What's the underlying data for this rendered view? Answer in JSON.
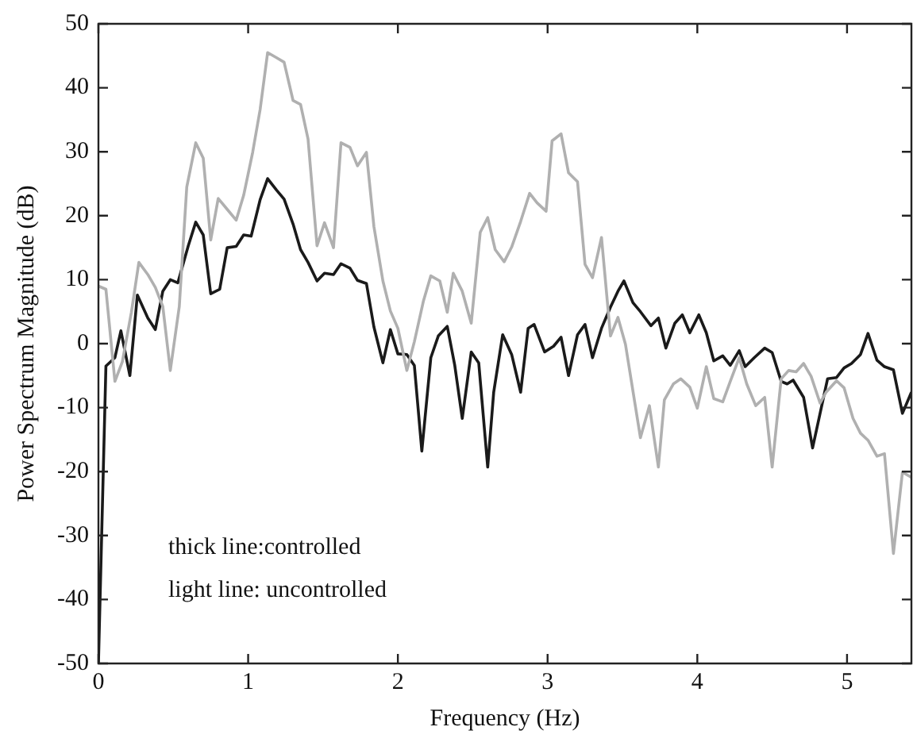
{
  "chart_data": {
    "type": "line",
    "xlabel": "Frequency (Hz)",
    "ylabel": "Power Spectrum Magnitude (dB)",
    "xlim": [
      0,
      5.43
    ],
    "ylim": [
      -50,
      50
    ],
    "xticks": [
      0,
      1,
      2,
      3,
      4,
      5
    ],
    "yticks": [
      -50,
      -40,
      -30,
      -20,
      -10,
      0,
      10,
      20,
      30,
      40,
      50
    ],
    "grid": false,
    "legend": false,
    "marker": "none",
    "line_style": "solid",
    "annotations": [
      "thick line:controlled",
      "light line: uncontrolled"
    ],
    "series": [
      {
        "color": "#1a1a1a",
        "x": [
          0,
          0.05,
          0.11,
          0.15,
          0.21,
          0.26,
          0.33,
          0.38,
          0.43,
          0.48,
          0.53,
          0.6,
          0.65,
          0.7,
          0.75,
          0.81,
          0.86,
          0.92,
          0.97,
          1.02,
          1.08,
          1.13,
          1.19,
          1.24,
          1.3,
          1.35,
          1.4,
          1.46,
          1.51,
          1.57,
          1.62,
          1.68,
          1.73,
          1.79,
          1.84,
          1.9,
          1.95,
          2.0,
          2.06,
          2.11,
          2.16,
          2.22,
          2.27,
          2.33,
          2.38,
          2.43,
          2.49,
          2.54,
          2.6,
          2.64,
          2.7,
          2.76,
          2.82,
          2.87,
          2.91,
          2.98,
          3.04,
          3.09,
          3.14,
          3.2,
          3.25,
          3.3,
          3.36,
          3.42,
          3.47,
          3.51,
          3.57,
          3.62,
          3.69,
          3.74,
          3.79,
          3.85,
          3.9,
          3.95,
          4.01,
          4.06,
          4.11,
          4.17,
          4.22,
          4.28,
          4.32,
          4.38,
          4.45,
          4.5,
          4.56,
          4.6,
          4.64,
          4.71,
          4.77,
          4.82,
          4.87,
          4.93,
          4.98,
          5.03,
          5.09,
          5.14,
          5.2,
          5.25,
          5.31,
          5.37,
          5.43
        ],
        "values": [
          -50,
          -3.5,
          -2.2,
          2,
          -5,
          7.6,
          4,
          2.2,
          8.2,
          10,
          9.5,
          15.3,
          19,
          17,
          7.8,
          8.5,
          15,
          15.2,
          17,
          16.8,
          22.5,
          25.8,
          24,
          22.6,
          18.7,
          14.7,
          12.7,
          9.8,
          11,
          10.8,
          12.5,
          11.8,
          9.9,
          9.4,
          2.6,
          -3,
          2.2,
          -1.6,
          -1.7,
          -3.4,
          -16.8,
          -2.2,
          1.2,
          2.7,
          -3.4,
          -11.7,
          -1.3,
          -3,
          -19.3,
          -7.6,
          1.4,
          -1.7,
          -7.6,
          2.4,
          3,
          -1.3,
          -0.4,
          1,
          -5,
          1.4,
          3,
          -2.2,
          2.4,
          5.7,
          8.2,
          9.8,
          6.4,
          5,
          2.8,
          4,
          -0.7,
          3.2,
          4.5,
          1.7,
          4.5,
          1.7,
          -2.7,
          -1.9,
          -3.4,
          -1.1,
          -3.6,
          -2.2,
          -0.7,
          -1.4,
          -5.9,
          -6.3,
          -5.7,
          -8.4,
          -16.3,
          -10.9,
          -5.5,
          -5.3,
          -3.8,
          -3.1,
          -1.7,
          1.6,
          -2.6,
          -3.6,
          -4.1,
          -10.9,
          -7.6
        ]
      },
      {
        "color": "#b0b0b0",
        "x": [
          0,
          0.05,
          0.11,
          0.16,
          0.22,
          0.27,
          0.33,
          0.38,
          0.43,
          0.48,
          0.54,
          0.59,
          0.65,
          0.7,
          0.75,
          0.8,
          0.86,
          0.92,
          0.97,
          1.03,
          1.08,
          1.13,
          1.19,
          1.24,
          1.3,
          1.35,
          1.4,
          1.46,
          1.51,
          1.57,
          1.62,
          1.68,
          1.73,
          1.79,
          1.84,
          1.9,
          1.95,
          2.0,
          2.06,
          2.11,
          2.17,
          2.22,
          2.28,
          2.33,
          2.37,
          2.43,
          2.49,
          2.55,
          2.6,
          2.65,
          2.71,
          2.76,
          2.82,
          2.88,
          2.93,
          2.99,
          3.03,
          3.09,
          3.14,
          3.2,
          3.25,
          3.3,
          3.36,
          3.42,
          3.47,
          3.52,
          3.62,
          3.68,
          3.74,
          3.78,
          3.84,
          3.89,
          3.95,
          4.0,
          4.06,
          4.11,
          4.17,
          4.22,
          4.28,
          4.33,
          4.39,
          4.45,
          4.5,
          4.56,
          4.61,
          4.66,
          4.71,
          4.76,
          4.82,
          4.86,
          4.93,
          4.98,
          5.04,
          5.09,
          5.14,
          5.2,
          5.25,
          5.31,
          5.37,
          5.43
        ],
        "values": [
          9,
          8.5,
          -5.9,
          -2.8,
          4.9,
          12.7,
          10.8,
          8.8,
          5.8,
          -4.2,
          5.8,
          24.5,
          31.4,
          29,
          16.2,
          22.7,
          21,
          19.3,
          23.2,
          29.9,
          36.6,
          45.5,
          44.7,
          44,
          38,
          37.4,
          32,
          15.3,
          18.9,
          15,
          31.4,
          30.7,
          27.8,
          29.9,
          18.3,
          9.8,
          5.1,
          2.4,
          -4.2,
          0.3,
          6.6,
          10.6,
          9.8,
          4.9,
          11,
          8.2,
          3.2,
          17.4,
          19.7,
          14.7,
          12.8,
          15.1,
          19.1,
          23.5,
          22,
          20.7,
          31.7,
          32.8,
          26.7,
          25.3,
          12.4,
          10.3,
          16.6,
          1.2,
          4.1,
          -0.1,
          -14.7,
          -9.7,
          -19.3,
          -8.8,
          -6.3,
          -5.5,
          -6.8,
          -10.1,
          -3.6,
          -8.6,
          -9.1,
          -5.9,
          -2.2,
          -6.3,
          -9.7,
          -8.4,
          -19.3,
          -5.5,
          -4.2,
          -4.4,
          -3.1,
          -5.1,
          -9.3,
          -7.6,
          -5.8,
          -6.9,
          -11.7,
          -14,
          -15.1,
          -17.6,
          -17.2,
          -32.8,
          -20.1,
          -20.9
        ]
      }
    ]
  }
}
